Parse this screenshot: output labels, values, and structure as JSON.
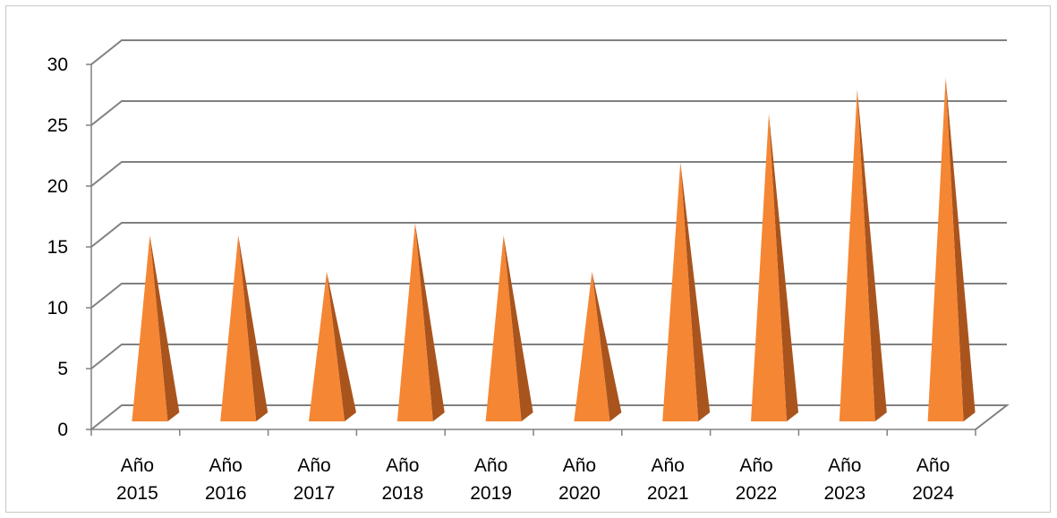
{
  "chart_data": {
    "type": "bar",
    "style": "3d-cone",
    "categories": [
      [
        "Año",
        "2015"
      ],
      [
        "Año",
        "2016"
      ],
      [
        "Año",
        "2017"
      ],
      [
        "Año",
        "2018"
      ],
      [
        "Año",
        "2019"
      ],
      [
        "Año",
        "2020"
      ],
      [
        "Año",
        "2021"
      ],
      [
        "Año",
        "2022"
      ],
      [
        "Año",
        "2023"
      ],
      [
        "Año",
        "2024"
      ]
    ],
    "values": [
      15,
      15,
      12,
      16,
      15,
      12,
      21,
      25,
      27,
      28
    ],
    "title": "",
    "xlabel": "",
    "ylabel": "",
    "ylim": [
      0,
      30
    ],
    "yticks": [
      0,
      5,
      10,
      15,
      20,
      25,
      30
    ],
    "grid": true,
    "legend": "none",
    "colors": {
      "bar_front": "#F58634",
      "bar_side": "#A9541D",
      "gridline": "#808080",
      "axis": "#808080"
    }
  }
}
